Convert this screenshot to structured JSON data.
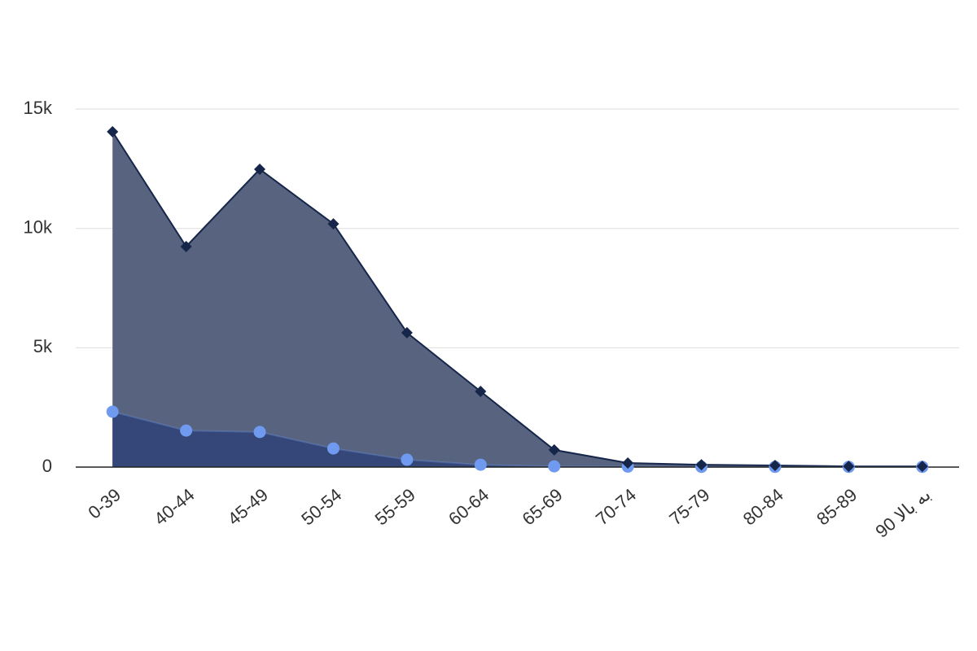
{
  "chart_data": {
    "type": "area",
    "categories": [
      "0-39",
      "40-44",
      "45-49",
      "50-54",
      "55-59",
      "60-64",
      "65-69",
      "70-74",
      "75-79",
      "80-84",
      "85-89",
      "90 به بالا"
    ],
    "series": [
      {
        "color": "#15264a",
        "area_color": "#4f5b78",
        "marker": "diamond",
        "values": [
          14050,
          9240,
          12480,
          10190,
          5630,
          3170,
          720,
          170,
          100,
          70,
          30,
          30
        ]
      },
      {
        "color": "#6f9af0",
        "area_color": "#344679",
        "marker": "circle",
        "values": [
          2320,
          1530,
          1470,
          780,
          310,
          100,
          30,
          20,
          10,
          10,
          10,
          10
        ]
      }
    ],
    "ylim": [
      0,
      16000
    ],
    "yticks": [
      {
        "value": 0,
        "label": "0"
      },
      {
        "value": 5000,
        "label": "5k"
      },
      {
        "value": 10000,
        "label": "10k"
      },
      {
        "value": 15000,
        "label": "15k"
      }
    ],
    "grid": true
  }
}
